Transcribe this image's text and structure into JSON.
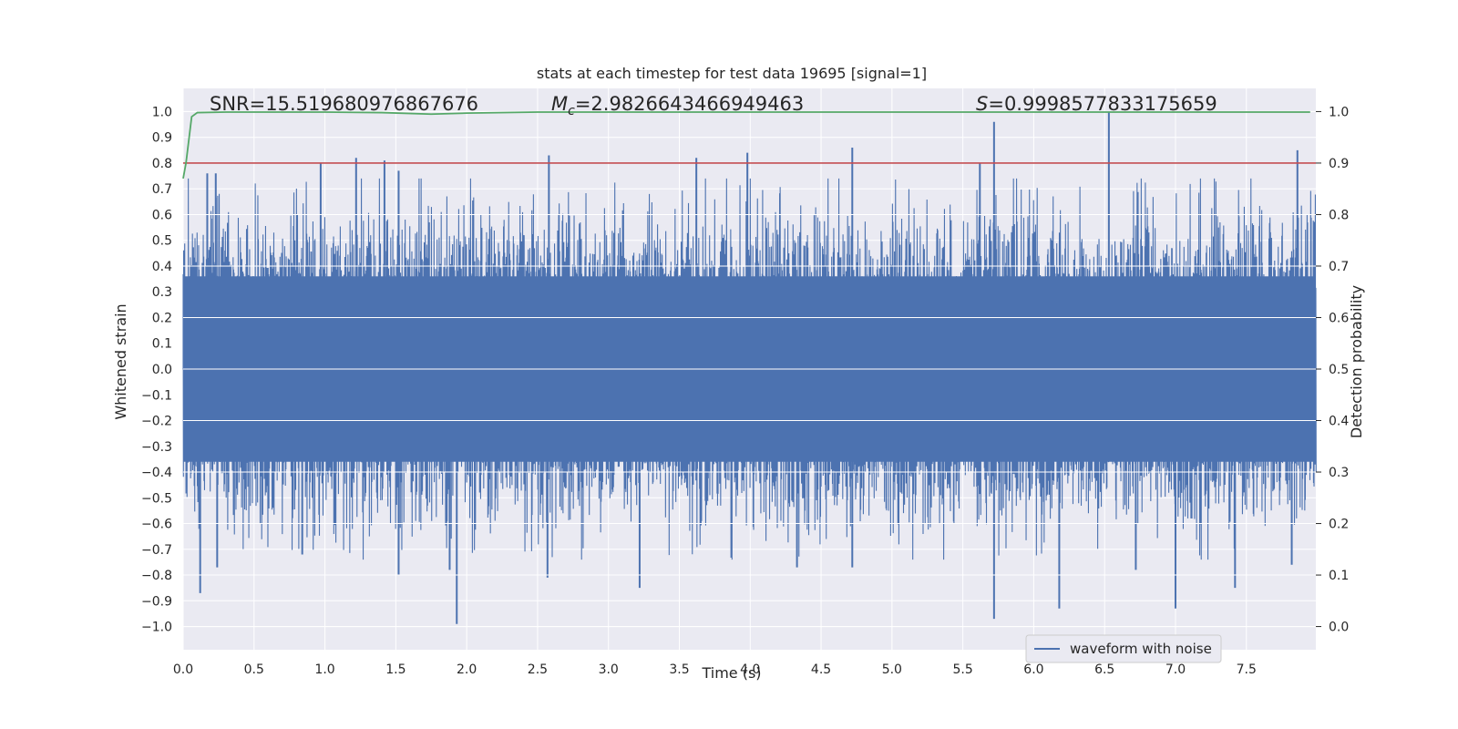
{
  "chart_data": {
    "type": "line",
    "title": "stats at each timestep for test data 19695 [signal=1]",
    "xlabel": "Time (s)",
    "ylabel_left": "Whitened strain",
    "ylabel_right": "Detection probability",
    "xlim": [
      0.0,
      7.99
    ],
    "ylim_left": [
      -1.09,
      1.09
    ],
    "ylim_right": [
      -0.045,
      1.045
    ],
    "xticks": [
      "0.0",
      "0.5",
      "1.0",
      "1.5",
      "2.0",
      "2.5",
      "3.0",
      "3.5",
      "4.0",
      "4.5",
      "5.0",
      "5.5",
      "6.0",
      "6.5",
      "7.0",
      "7.5"
    ],
    "yticks_left": [
      "1.0",
      "0.9",
      "0.8",
      "0.7",
      "0.6",
      "0.5",
      "0.4",
      "0.3",
      "0.2",
      "0.1",
      "0.0",
      "−0.1",
      "−0.2",
      "−0.3",
      "−0.4",
      "−0.5",
      "−0.6",
      "−0.7",
      "−0.8",
      "−0.9",
      "−1.0"
    ],
    "yticks_right": [
      "1.0",
      "0.9",
      "0.8",
      "0.7",
      "0.6",
      "0.5",
      "0.4",
      "0.3",
      "0.2",
      "0.1",
      "0.0"
    ],
    "grid": true,
    "legend_position": "lower-right",
    "colors": {
      "background": "#eaeaf2",
      "grid": "#ffffff",
      "waveform": "#4c72b0",
      "probability": "#55a868",
      "threshold": "#c44e52",
      "text": "#262626"
    },
    "annotations": {
      "snr": "SNR=15.519680976867676",
      "mc_symbol": "M",
      "mc_sub": "c",
      "mc_value": "=2.9826643466949463",
      "s_symbol": "S",
      "s_value": "=0.9998577833175659"
    },
    "series": [
      {
        "name": "waveform with noise",
        "axis": "left",
        "kind": "strain",
        "t_range": [
          0.0,
          7.99
        ],
        "typical_envelope": [
          -0.4,
          0.4
        ],
        "peaks": [
          {
            "t": 0.17,
            "v": 0.76
          },
          {
            "t": 0.23,
            "v": 0.76
          },
          {
            "t": 0.97,
            "v": 0.8
          },
          {
            "t": 1.22,
            "v": 0.82
          },
          {
            "t": 1.42,
            "v": 0.81
          },
          {
            "t": 1.52,
            "v": 0.77
          },
          {
            "t": 2.58,
            "v": 0.83
          },
          {
            "t": 3.62,
            "v": 0.82
          },
          {
            "t": 3.98,
            "v": 0.84
          },
          {
            "t": 4.72,
            "v": 0.86
          },
          {
            "t": 5.62,
            "v": 0.8
          },
          {
            "t": 5.72,
            "v": 0.96
          },
          {
            "t": 6.53,
            "v": 1.0
          },
          {
            "t": 7.86,
            "v": 0.85
          }
        ],
        "troughs": [
          {
            "t": 0.12,
            "v": -0.87
          },
          {
            "t": 0.24,
            "v": -0.77
          },
          {
            "t": 0.84,
            "v": -0.72
          },
          {
            "t": 1.52,
            "v": -0.8
          },
          {
            "t": 1.88,
            "v": -0.78
          },
          {
            "t": 1.93,
            "v": -0.99
          },
          {
            "t": 2.57,
            "v": -0.81
          },
          {
            "t": 3.22,
            "v": -0.85
          },
          {
            "t": 4.33,
            "v": -0.77
          },
          {
            "t": 4.72,
            "v": -0.77
          },
          {
            "t": 5.72,
            "v": -0.97
          },
          {
            "t": 6.18,
            "v": -0.93
          },
          {
            "t": 6.72,
            "v": -0.78
          },
          {
            "t": 7.0,
            "v": -0.93
          },
          {
            "t": 7.42,
            "v": -0.85
          },
          {
            "t": 7.82,
            "v": -0.76
          }
        ]
      },
      {
        "name": "",
        "axis": "right",
        "kind": "line",
        "t": [
          0.0,
          0.02,
          0.06,
          0.1,
          0.3,
          0.6,
          1.0,
          1.4,
          1.75,
          2.0,
          2.5,
          3.0,
          3.5,
          4.0,
          4.5,
          5.0,
          5.5,
          6.0,
          6.5,
          7.0,
          7.5,
          7.95
        ],
        "values": [
          0.87,
          0.9,
          0.99,
          0.998,
          0.999,
          0.999,
          0.999,
          0.998,
          0.995,
          0.997,
          0.999,
          0.999,
          0.999,
          0.999,
          0.999,
          0.999,
          0.999,
          0.999,
          0.999,
          0.999,
          0.999,
          0.999
        ]
      },
      {
        "name": "",
        "axis": "right",
        "kind": "hline",
        "value": 0.9
      }
    ]
  }
}
